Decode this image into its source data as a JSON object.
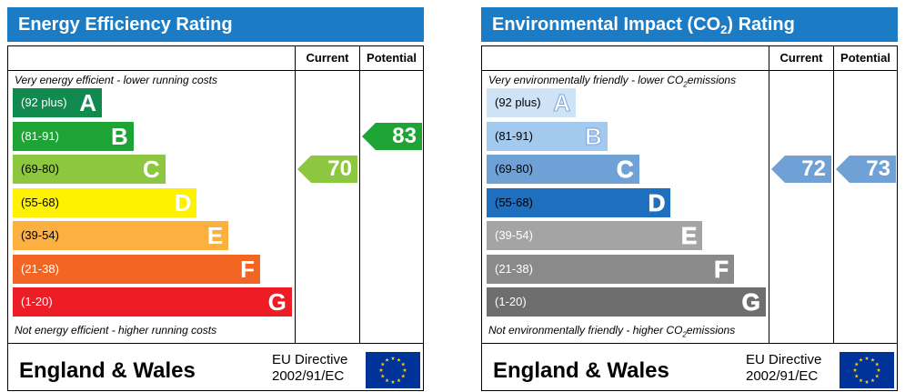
{
  "colors": {
    "title_bar": "#1b7bc4",
    "energy_bands": [
      "#108a4f",
      "#1ea435",
      "#8dc63f",
      "#fff200",
      "#fcb040",
      "#f26522",
      "#ee1c24"
    ],
    "env_bands": [
      "#cfe3f6",
      "#a4c9ef",
      "#6fa1d6",
      "#1f6fbf",
      "#a4a4a4",
      "#8a8a8a",
      "#6e6e6e"
    ],
    "energy_current_arrow": "#8dc63f",
    "energy_potential_arrow": "#1ea435",
    "env_current_arrow": "#6fa1d6",
    "env_potential_arrow": "#6fa1d6",
    "flag_blue": "#003399",
    "flag_stars": "#ffcc00"
  },
  "chart_data": [
    {
      "type": "bar",
      "title": "Energy Efficiency Rating",
      "column_headers": [
        "Current",
        "Potential"
      ],
      "top_caption": "Very energy efficient - lower running costs",
      "bottom_caption": "Not energy efficient - higher running costs",
      "bands": [
        {
          "range": "(92 plus)",
          "letter": "A"
        },
        {
          "range": "(81-91)",
          "letter": "B"
        },
        {
          "range": "(69-80)",
          "letter": "C"
        },
        {
          "range": "(55-68)",
          "letter": "D"
        },
        {
          "range": "(39-54)",
          "letter": "E"
        },
        {
          "range": "(21-38)",
          "letter": "F"
        },
        {
          "range": "(1-20)",
          "letter": "G"
        }
      ],
      "current": {
        "value": "70",
        "band_index": 2
      },
      "potential": {
        "value": "83",
        "band_index": 1
      },
      "footer": {
        "region": "England & Wales",
        "directive_line1": "EU Directive",
        "directive_line2": "2002/91/EC"
      }
    },
    {
      "type": "bar",
      "title_main": "Environmental Impact (CO",
      "title_sub": "2",
      "title_end": ") Rating",
      "column_headers": [
        "Current",
        "Potential"
      ],
      "top_caption_main": "Very environmentally friendly - lower CO",
      "top_caption_sub": "2",
      "top_caption_end": "emissions",
      "bottom_caption_main": "Not environmentally friendly - higher CO",
      "bottom_caption_sub": "2",
      "bottom_caption_end": "emissions",
      "bands": [
        {
          "range": "(92 plus)",
          "letter": "A"
        },
        {
          "range": "(81-91)",
          "letter": "B"
        },
        {
          "range": "(69-80)",
          "letter": "C"
        },
        {
          "range": "(55-68)",
          "letter": "D"
        },
        {
          "range": "(39-54)",
          "letter": "E"
        },
        {
          "range": "(21-38)",
          "letter": "F"
        },
        {
          "range": "(1-20)",
          "letter": "G"
        }
      ],
      "current": {
        "value": "72",
        "band_index": 2
      },
      "potential": {
        "value": "73",
        "band_index": 2
      },
      "footer": {
        "region": "England & Wales",
        "directive_line1": "EU Directive",
        "directive_line2": "2002/91/EC"
      }
    }
  ]
}
